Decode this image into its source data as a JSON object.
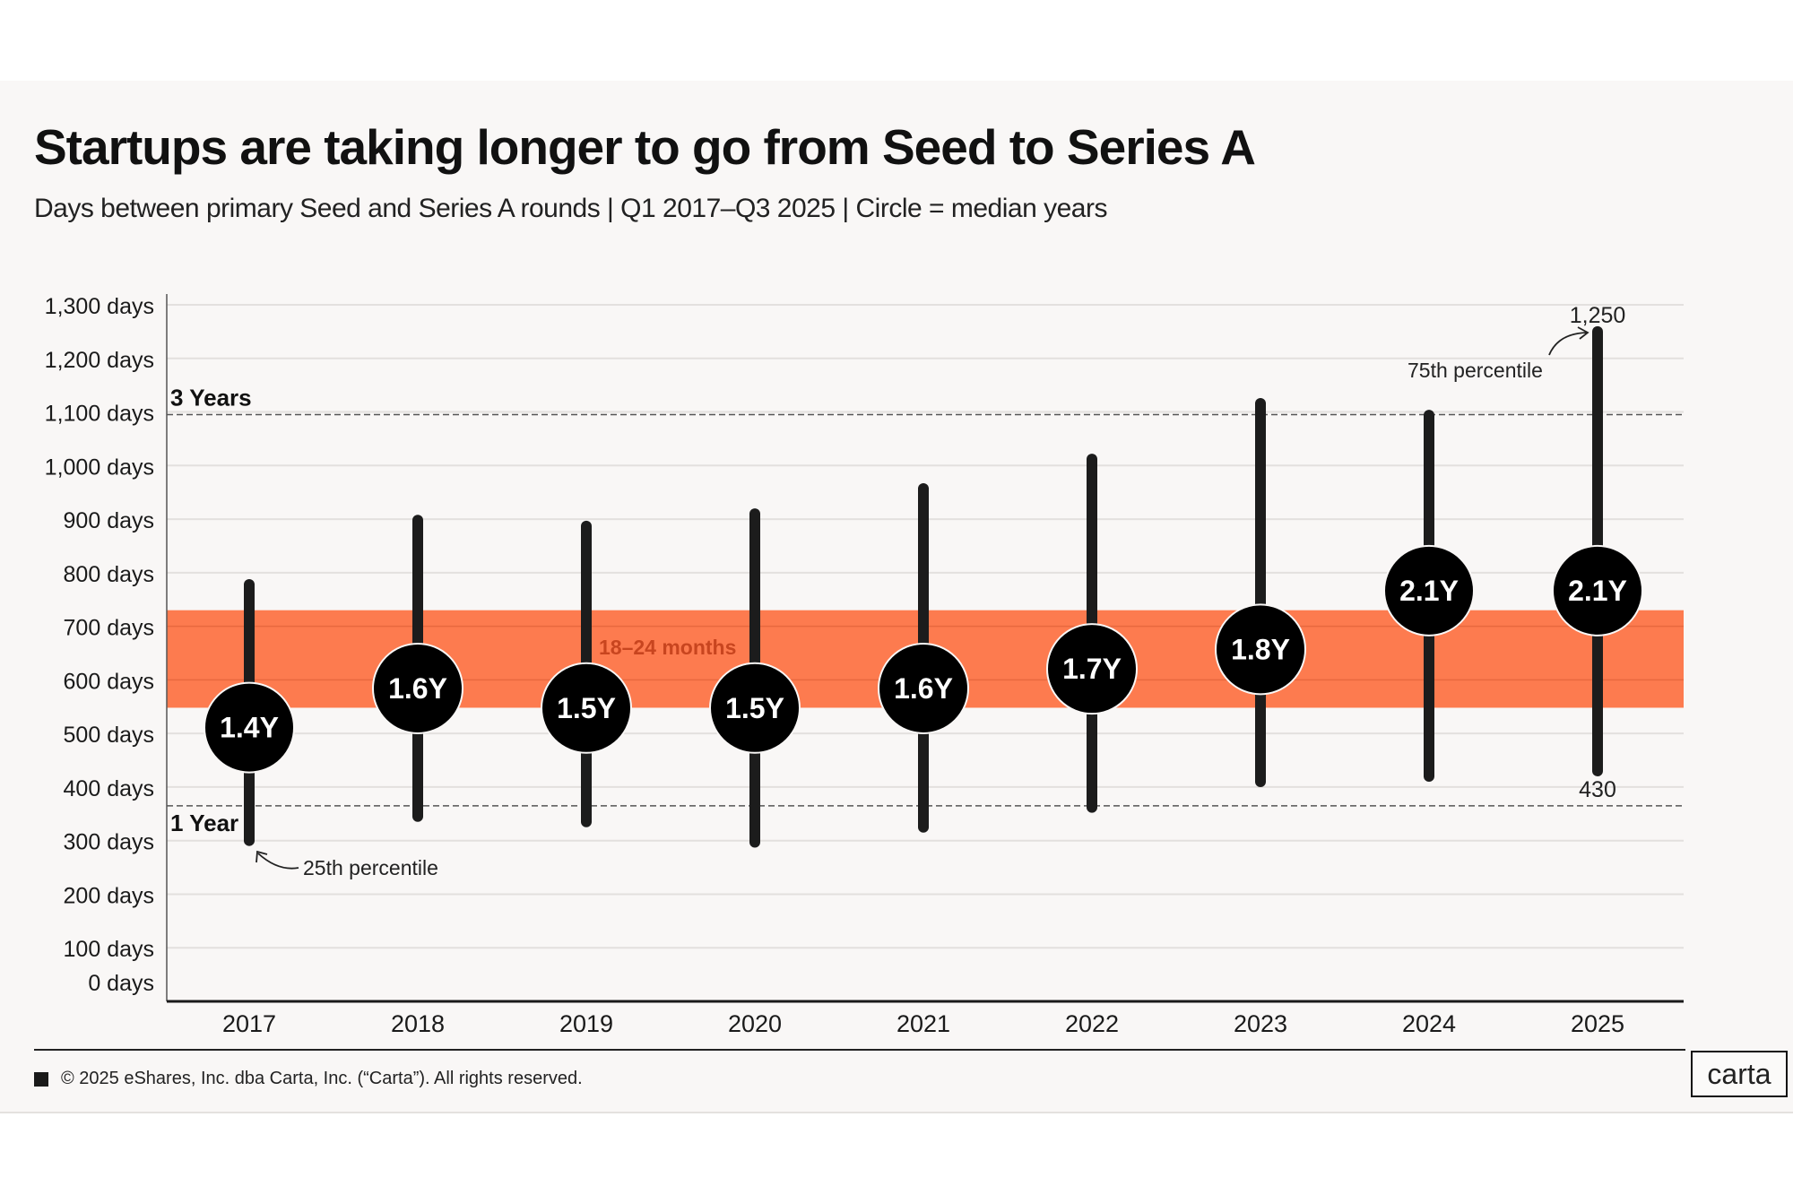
{
  "chart_data": {
    "type": "range-dot",
    "title": "Startups are taking longer to go from Seed to Series A",
    "subtitle": "Days between primary Seed and Series A rounds | Q1 2017–Q3 2025 | Circle = median years",
    "xlabel": "",
    "ylabel": "",
    "ylim": [
      0,
      1300
    ],
    "y_ticks": [
      {
        "value": 1300,
        "label": "1,300 days"
      },
      {
        "value": 1200,
        "label": "1,200 days"
      },
      {
        "value": 1100,
        "label": "1,100 days"
      },
      {
        "value": 1000,
        "label": "1,000 days"
      },
      {
        "value": 900,
        "label": "900 days"
      },
      {
        "value": 800,
        "label": "800 days"
      },
      {
        "value": 700,
        "label": "700 days"
      },
      {
        "value": 600,
        "label": "600 days"
      },
      {
        "value": 500,
        "label": "500 days"
      },
      {
        "value": 400,
        "label": "400 days"
      },
      {
        "value": 300,
        "label": "300 days"
      },
      {
        "value": 200,
        "label": "200 days"
      },
      {
        "value": 100,
        "label": "100 days"
      },
      {
        "value": 0,
        "label": "0 days"
      }
    ],
    "grid": true,
    "categories": [
      "2017",
      "2018",
      "2019",
      "2020",
      "2021",
      "2022",
      "2023",
      "2024",
      "2025"
    ],
    "series": [
      {
        "name": "25th percentile (days)",
        "values": [
          300,
          345,
          335,
          297,
          325,
          362,
          410,
          420,
          430
        ]
      },
      {
        "name": "75th percentile (days)",
        "values": [
          778,
          898,
          887,
          910,
          957,
          1012,
          1116,
          1094,
          1250
        ]
      },
      {
        "name": "Median (years)",
        "values": [
          1.4,
          1.6,
          1.5,
          1.5,
          1.6,
          1.7,
          1.8,
          2.1,
          2.1
        ],
        "labels": [
          "1.4Y",
          "1.6Y",
          "1.5Y",
          "1.5Y",
          "1.6Y",
          "1.7Y",
          "1.8Y",
          "2.1Y",
          "2.1Y"
        ]
      }
    ],
    "band": {
      "label": "18–24 months",
      "from_days": 548,
      "to_days": 730,
      "color": "#fd7b4f",
      "label_color": "#c8451f"
    },
    "reference_lines": [
      {
        "label": "3 Years",
        "value_days": 1095
      },
      {
        "label": "1 Year",
        "value_days": 365
      }
    ],
    "annotations": [
      {
        "text": "1,250",
        "target": "2025 75th percentile"
      },
      {
        "text": "75th percentile",
        "target": "2025 top"
      },
      {
        "text": "430",
        "target": "2025 25th percentile"
      },
      {
        "text": "25th percentile",
        "target": "2017 bottom"
      }
    ],
    "colors": {
      "bar": "#1c1c1c",
      "circle": "#000000",
      "circle_text": "#ffffff",
      "grid": "#e3e0de",
      "background": "#f9f7f6"
    }
  },
  "footer": {
    "copyright": "© 2025 eShares, Inc. dba Carta, Inc. (“Carta”). All rights reserved.",
    "logo": "carta"
  }
}
